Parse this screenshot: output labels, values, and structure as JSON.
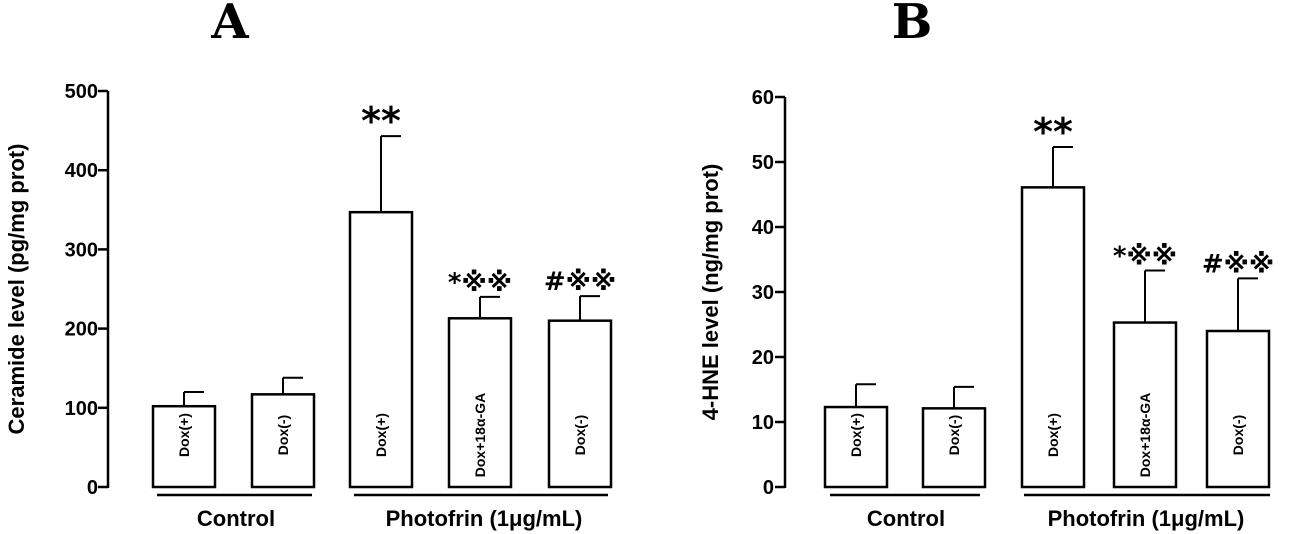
{
  "chart_data": [
    {
      "type": "bar",
      "panel": "A",
      "ylabel": "Ceramide level (pg/mg prot)",
      "ylim": [
        0,
        500
      ],
      "yticks": [
        0,
        100,
        200,
        300,
        400,
        500
      ],
      "categories": [
        "Dox(+)",
        "Dox(-)",
        "Dox(+)",
        "Dox+18α-GA",
        "Dox(-)"
      ],
      "values": [
        102,
        117,
        347,
        213,
        210
      ],
      "errors": [
        18,
        21,
        96,
        27,
        31
      ],
      "annotations": [
        "",
        "",
        "**",
        "*※※",
        "#※※"
      ],
      "groups": [
        {
          "label": "Control",
          "bars": [
            0,
            1
          ]
        },
        {
          "label": "Photofrin (1μg/mL)",
          "bars": [
            2,
            3,
            4
          ]
        }
      ]
    },
    {
      "type": "bar",
      "panel": "B",
      "ylabel": "4-HNE level (ng/mg prot)",
      "ylim": [
        0,
        60
      ],
      "yticks": [
        0,
        10,
        20,
        30,
        40,
        50,
        60
      ],
      "categories": [
        "Dox(+)",
        "Dox(-)",
        "Dox(+)",
        "Dox+18α-GA",
        "Dox(-)"
      ],
      "values": [
        12.3,
        12.1,
        46.1,
        25.3,
        24.0
      ],
      "errors": [
        3.5,
        3.3,
        6.2,
        8.0,
        8.1
      ],
      "annotations": [
        "",
        "",
        "**",
        "*※※",
        "#※※"
      ],
      "groups": [
        {
          "label": "Control",
          "bars": [
            0,
            1
          ]
        },
        {
          "label": "Photofrin (1μg/mL)",
          "bars": [
            2,
            3,
            4
          ]
        }
      ]
    }
  ]
}
